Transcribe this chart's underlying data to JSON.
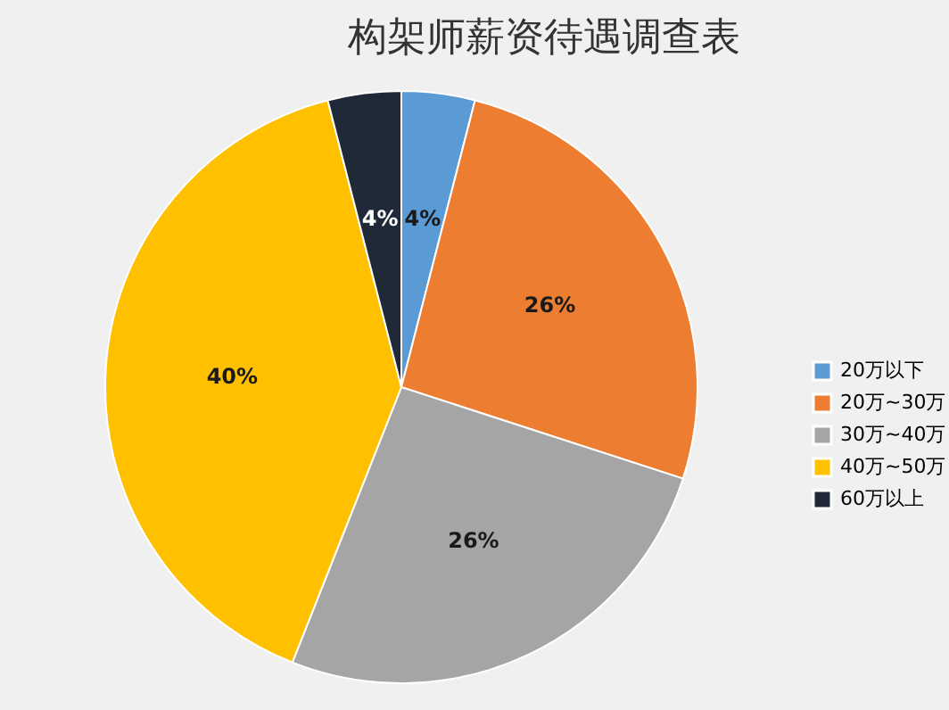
{
  "chart_data": {
    "type": "pie",
    "title": "构架师薪资待遇调查表",
    "categories": [
      "20万以下",
      "20万~30万",
      "30万~40万",
      "40万~50万",
      "60万以上"
    ],
    "values": [
      4,
      26,
      26,
      40,
      4
    ],
    "value_labels": [
      "4%",
      "26%",
      "26%",
      "40%",
      "4%"
    ],
    "colors": [
      "#5b9bd5",
      "#ed7d31",
      "#a5a5a5",
      "#ffc000",
      "#1f2937"
    ],
    "legend": "right"
  }
}
